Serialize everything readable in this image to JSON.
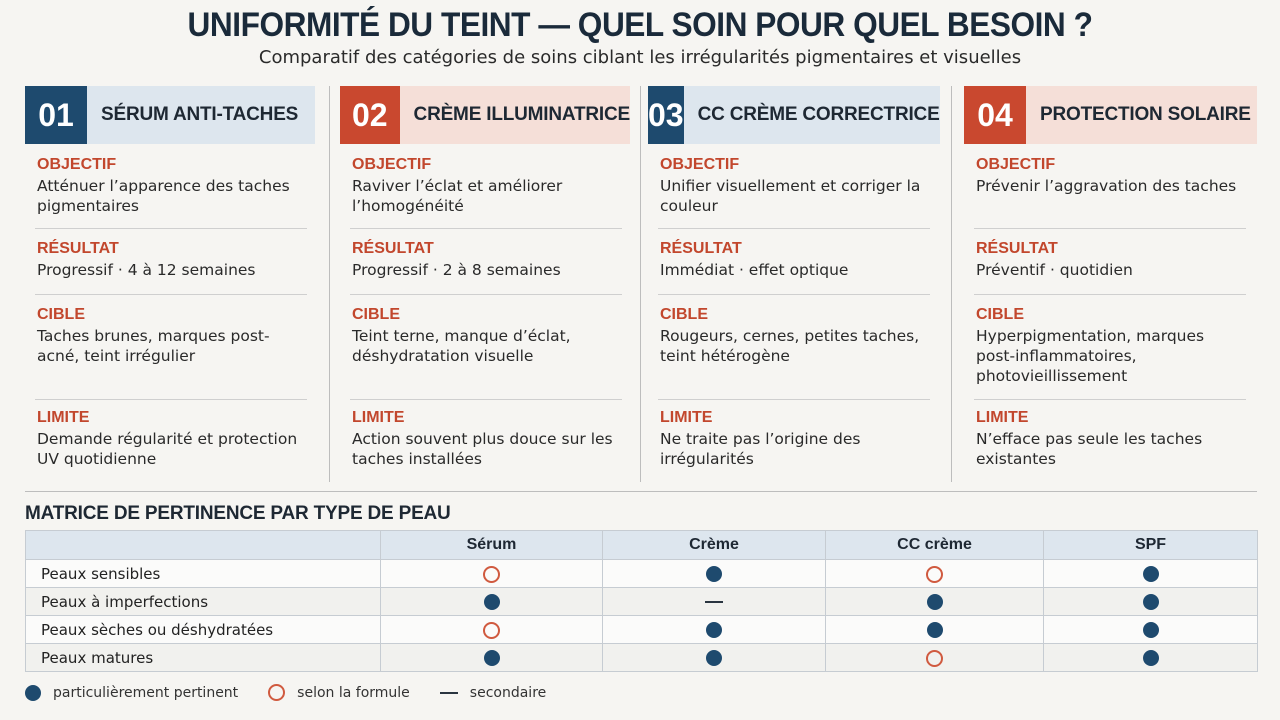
{
  "title": "UNIFORMITÉ DU TEINT — QUEL SOIN POUR QUEL BESOIN ?",
  "subtitle": "Comparatif des catégories de soins ciblant les irrégularités pigmentaires et visuelles",
  "colors": {
    "blue": "#1e4a6e",
    "red": "#c9482f",
    "label": "#c2472d"
  },
  "cards": [
    {
      "num": "01",
      "name": "SÉRUM ANTI-TACHES",
      "theme": "blue",
      "objectif_label": "OBJECTIF",
      "objectif": "Atténuer l’apparence des taches pigmentaires",
      "resultat_label": "RÉSULTAT",
      "resultat": "Progressif · 4 à 12 semaines",
      "cible_label": "CIBLE",
      "cible": "Taches brunes, marques post-acné, teint irrégulier",
      "limite_label": "LIMITE",
      "limite": "Demande régularité et protection UV quotidienne"
    },
    {
      "num": "02",
      "name": "CRÈME ILLUMINATRICE",
      "theme": "red",
      "objectif_label": "OBJECTIF",
      "objectif": "Raviver l’éclat et améliorer l’homogénéité",
      "resultat_label": "RÉSULTAT",
      "resultat": "Progressif · 2 à 8 semaines",
      "cible_label": "CIBLE",
      "cible": "Teint terne, manque d’éclat, déshydratation visuelle",
      "limite_label": "LIMITE",
      "limite": "Action souvent plus douce sur les taches installées"
    },
    {
      "num": "03",
      "name": "CC CRÈME CORRECTRICE",
      "theme": "blue",
      "objectif_label": "OBJECTIF",
      "objectif": "Unifier visuellement et corriger la couleur",
      "resultat_label": "RÉSULTAT",
      "resultat": "Immédiat · effet optique",
      "cible_label": "CIBLE",
      "cible": "Rougeurs, cernes, petites taches, teint hétérogène",
      "limite_label": "LIMITE",
      "limite": "Ne traite pas l’origine des irrégularités"
    },
    {
      "num": "04",
      "name": "PROTECTION SOLAIRE",
      "theme": "red",
      "objectif_label": "OBJECTIF",
      "objectif": "Prévenir l’aggravation des taches",
      "resultat_label": "RÉSULTAT",
      "resultat": "Préventif · quotidien",
      "cible_label": "CIBLE",
      "cible": "Hyperpigmentation, marques post-inflammatoires, photovieillissement",
      "limite_label": "LIMITE",
      "limite": "N’efface pas seule les taches existantes"
    }
  ],
  "matrix": {
    "title": "MATRICE DE PERTINENCE PAR TYPE DE PEAU",
    "columns": [
      "Sérum",
      "Crème",
      "CC crème",
      "SPF"
    ],
    "rows": [
      {
        "label": "Peaux sensibles",
        "values": [
          "formula",
          "high",
          "formula",
          "high"
        ]
      },
      {
        "label": "Peaux à imperfections",
        "values": [
          "high",
          "secondary",
          "high",
          "high"
        ]
      },
      {
        "label": "Peaux sèches ou déshydratées",
        "values": [
          "formula",
          "high",
          "high",
          "high"
        ]
      },
      {
        "label": "Peaux matures",
        "values": [
          "high",
          "high",
          "formula",
          "high"
        ]
      }
    ]
  },
  "legend": {
    "high": "particulièrement pertinent",
    "formula": "selon la formule",
    "secondary": "secondaire"
  }
}
